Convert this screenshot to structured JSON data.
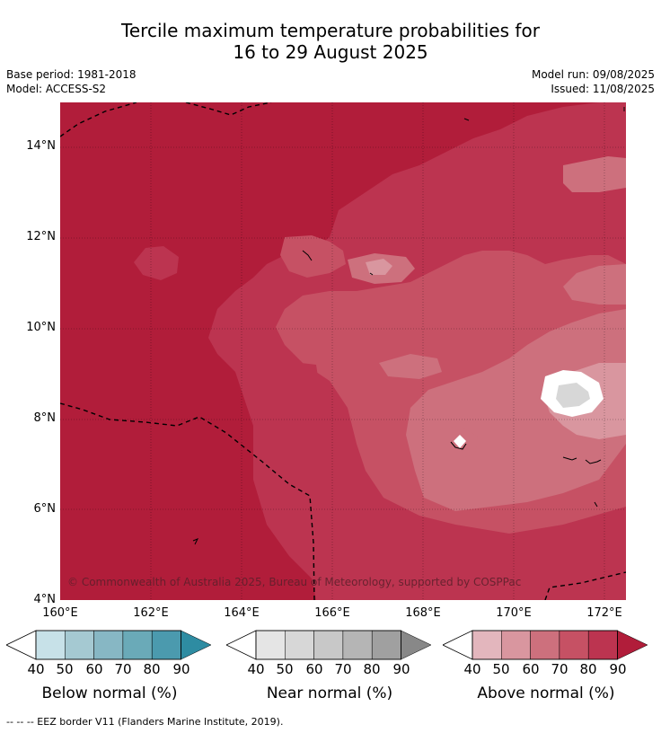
{
  "title_line1": "Tercile maximum temperature probabilities for",
  "title_line2": "16 to 29 August 2025",
  "meta": {
    "base_period": "Base period: 1981-2018",
    "model": "Model: ACCESS-S2",
    "model_run": "Model run: 09/08/2025",
    "issued": "Issued: 11/08/2025"
  },
  "map": {
    "lat_labels": [
      "14°N",
      "12°N",
      "10°N",
      "8°N",
      "6°N",
      "4°N"
    ],
    "lon_labels": [
      "160°E",
      "162°E",
      "164°E",
      "166°E",
      "168°E",
      "170°E",
      "172°E"
    ],
    "lon_range": [
      160,
      172.5
    ],
    "lat_range": [
      4,
      15
    ],
    "copyright": "© Commonwealth of Australia 2025, Bureau of Meteorology, supported by COSPPac",
    "colors": {
      "above_90": "#b11d3a",
      "above_80": "#bc3450",
      "above_70": "#c65164",
      "above_60": "#cd707d",
      "above_50": "#d9969f",
      "near_50": "#d7d7d7"
    }
  },
  "colorbars": [
    {
      "name": "below",
      "label": "Below normal (%)",
      "ticks": [
        "40",
        "50",
        "60",
        "70",
        "80",
        "90"
      ],
      "colors": [
        "#c7e1e8",
        "#a5c9d2",
        "#87b7c4",
        "#6aaab8",
        "#4b9aae",
        "#2e8ca2"
      ]
    },
    {
      "name": "near",
      "label": "Near normal (%)",
      "ticks": [
        "40",
        "50",
        "60",
        "70",
        "80",
        "90"
      ],
      "colors": [
        "#e5e5e5",
        "#d7d7d7",
        "#c8c8c8",
        "#b5b5b5",
        "#a0a0a0",
        "#888888"
      ]
    },
    {
      "name": "above",
      "label": "Above normal (%)",
      "ticks": [
        "40",
        "50",
        "60",
        "70",
        "80",
        "90"
      ],
      "colors": [
        "#e3b6bd",
        "#d9969f",
        "#cd707d",
        "#c65164",
        "#bc3450",
        "#b11d3a"
      ]
    }
  ],
  "footnote": "--  --  -- EEZ border V11 (Flanders Marine Institute, 2019)."
}
